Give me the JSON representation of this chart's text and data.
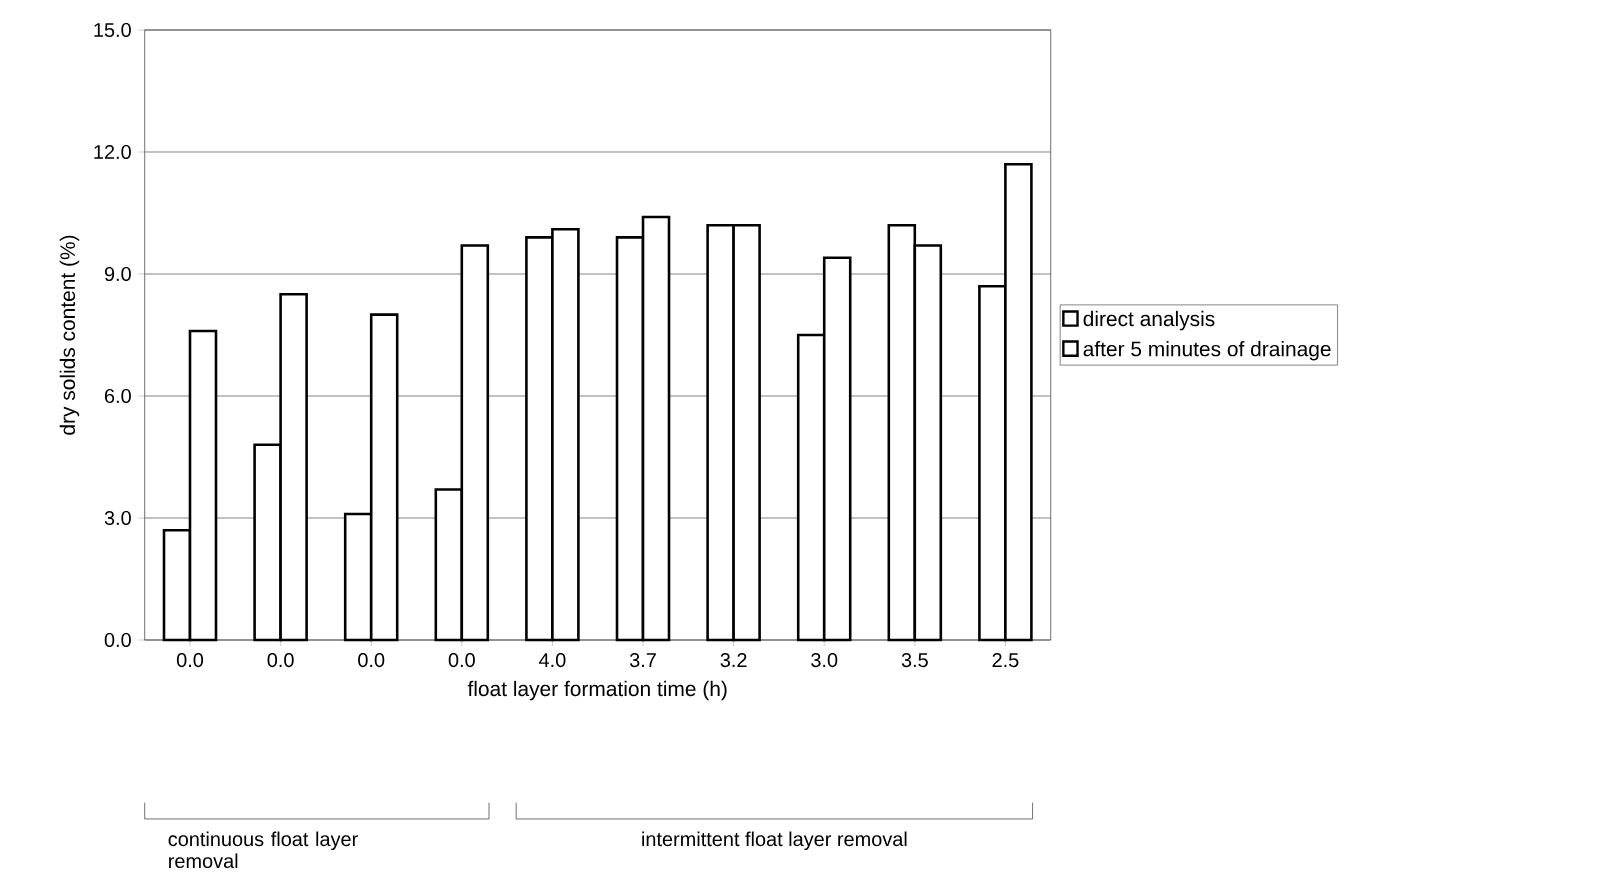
{
  "chart_data": {
    "type": "bar",
    "xlabel": "float layer formation time (h)",
    "ylabel": "dry solids content (%)",
    "categories": [
      "0.0",
      "0.0",
      "0.0",
      "0.0",
      "4.0",
      "3.7",
      "3.2",
      "3.0",
      "3.5",
      "2.5"
    ],
    "series": [
      {
        "name": "direct analysis",
        "color": "#ffffff",
        "values": [
          2.7,
          4.8,
          3.1,
          3.7,
          9.9,
          9.9,
          10.2,
          7.5,
          10.2,
          8.7
        ]
      },
      {
        "name": "after 5 minutes of drainage",
        "color": "#ffffff",
        "values": [
          7.6,
          8.5,
          8.0,
          9.7,
          10.1,
          10.4,
          10.2,
          9.4,
          9.7,
          11.7
        ]
      }
    ],
    "ylim": [
      0,
      15
    ],
    "yticks": [
      {
        "value": 0,
        "label": "0.0"
      },
      {
        "value": 3,
        "label": "3.0"
      },
      {
        "value": 6,
        "label": "6.0"
      },
      {
        "value": 9,
        "label": "9.0"
      },
      {
        "value": 12,
        "label": "12.0"
      },
      {
        "value": 15,
        "label": "15.0"
      }
    ],
    "grid": "y",
    "legend": "right",
    "annotations": [
      "continuous float layer removal",
      "intermittent float layer removal"
    ]
  }
}
